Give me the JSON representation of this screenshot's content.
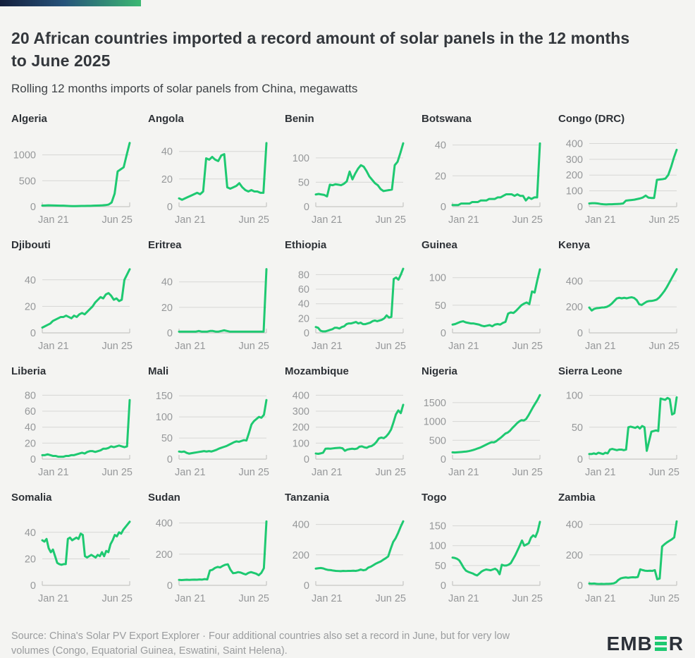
{
  "header": {
    "title": "20 African countries imported a record amount of solar panels in the 12 months to June 2025",
    "subtitle": "Rolling 12 months imports of solar panels from China, megawatts"
  },
  "footer": {
    "source": "Source: China's Solar PV Export Explorer · Four additional countries also set a record in June, but for very low volumes (Congo, Equatorial Guinea, Eswatini, Saint Helena).",
    "logo": {
      "prefix": "EMB",
      "suffix": "R"
    }
  },
  "colors": {
    "line_green": "#1ec971",
    "gridline": "#d7d7d5",
    "axis_text": "#96989a",
    "title_text": "#33373c",
    "gradient_start": "#141f3c",
    "gradient_end": "#3cb873"
  },
  "chart_data": {
    "type": "line",
    "unit": "megawatts",
    "x_start_label": "Jan 21",
    "x_end_label": "Jun 25",
    "x_range": [
      "Jan 2021",
      "Jun 2025"
    ],
    "grid": true,
    "charts": [
      {
        "title": "Algeria",
        "yticks": [
          0,
          500,
          1000
        ],
        "ymax": 1280,
        "values": [
          20,
          22,
          25,
          24,
          22,
          20,
          19,
          18,
          15,
          12,
          10,
          10,
          12,
          13,
          14,
          15,
          16,
          18,
          20,
          22,
          25,
          30,
          40,
          80,
          250,
          680,
          720,
          760,
          1000,
          1230
        ]
      },
      {
        "title": "Angola",
        "yticks": [
          0,
          20,
          40
        ],
        "ymax": 48,
        "values": [
          6,
          5,
          6,
          7,
          8,
          9,
          10,
          9,
          11,
          35,
          34,
          36,
          34,
          33,
          37,
          38,
          14,
          13,
          14,
          15,
          17,
          14,
          12,
          11,
          12,
          11,
          11,
          10,
          10,
          46
        ]
      },
      {
        "title": "Benin",
        "yticks": [
          0,
          50,
          100
        ],
        "ymax": 136,
        "values": [
          25,
          26,
          25,
          24,
          21,
          45,
          44,
          46,
          45,
          44,
          47,
          52,
          72,
          56,
          68,
          78,
          85,
          82,
          73,
          62,
          55,
          48,
          44,
          36,
          32,
          33,
          34,
          35,
          85,
          92,
          110,
          130
        ]
      },
      {
        "title": "Botswana",
        "yticks": [
          0,
          20,
          40
        ],
        "ymax": 43,
        "values": [
          1,
          1,
          1,
          2,
          2,
          2,
          2,
          3,
          3,
          3,
          4,
          4,
          4,
          5,
          5,
          5,
          6,
          6,
          7,
          8,
          8,
          8,
          7,
          8,
          7,
          7,
          4,
          6,
          5,
          6,
          6,
          41
        ]
      },
      {
        "title": "Congo (DRC)",
        "yticks": [
          0,
          100,
          200,
          300,
          400
        ],
        "ymax": 420,
        "values": [
          20,
          22,
          22,
          20,
          17,
          15,
          14,
          15,
          15,
          16,
          17,
          18,
          20,
          38,
          40,
          42,
          44,
          48,
          52,
          58,
          70,
          57,
          55,
          55,
          170,
          172,
          174,
          178,
          200,
          250,
          310,
          360
        ]
      },
      {
        "title": "Djibouti",
        "yticks": [
          0,
          20,
          40
        ],
        "ymax": 50,
        "values": [
          4,
          5,
          6,
          7,
          9,
          10,
          11,
          12,
          12,
          13,
          12,
          11,
          13,
          12,
          14,
          15,
          14,
          16,
          18,
          20,
          23,
          25,
          27,
          26,
          29,
          30,
          28,
          25,
          26,
          24,
          25,
          40,
          44,
          48
        ]
      },
      {
        "title": "Eritrea",
        "yticks": [
          0,
          20,
          40
        ],
        "ymax": 52,
        "values": [
          1,
          1,
          1,
          1,
          1,
          1,
          1,
          1.5,
          1,
          1,
          1,
          1.5,
          1.5,
          1,
          1,
          1.5,
          2,
          1.5,
          1,
          1,
          1,
          1,
          1,
          1,
          1,
          1,
          1,
          1,
          1,
          1,
          1,
          50
        ]
      },
      {
        "title": "Ethiopia",
        "yticks": [
          0,
          20,
          40,
          60,
          80
        ],
        "ymax": 91,
        "values": [
          8,
          7,
          3,
          2,
          2,
          3,
          4,
          5,
          7,
          7,
          6,
          8,
          9,
          12,
          13,
          13,
          14,
          15,
          13,
          14,
          12,
          12,
          13,
          14,
          16,
          17,
          16,
          17,
          18,
          20,
          24,
          21,
          22,
          74,
          76,
          73,
          80,
          88
        ]
      },
      {
        "title": "Guinea",
        "yticks": [
          0,
          50,
          100
        ],
        "ymax": 120,
        "values": [
          15,
          16,
          18,
          20,
          21,
          19,
          18,
          17,
          17,
          16,
          15,
          13,
          12,
          13,
          14,
          12,
          15,
          16,
          15,
          18,
          20,
          35,
          37,
          36,
          40,
          45,
          50,
          53,
          55,
          52,
          75,
          73,
          95,
          115
        ]
      },
      {
        "title": "Kenya",
        "yticks": [
          0,
          200,
          400
        ],
        "ymax": 510,
        "values": [
          195,
          172,
          185,
          190,
          192,
          195,
          196,
          200,
          210,
          225,
          245,
          265,
          270,
          266,
          270,
          266,
          271,
          274,
          268,
          252,
          220,
          215,
          228,
          240,
          245,
          246,
          250,
          256,
          272,
          295,
          320,
          350,
          385,
          420,
          455,
          490
        ]
      },
      {
        "title": "Liberia",
        "yticks": [
          0,
          20,
          40,
          60,
          80
        ],
        "ymax": 83,
        "values": [
          5,
          5,
          6,
          5,
          4,
          4,
          3,
          3,
          3,
          4,
          4,
          5,
          5,
          6,
          7,
          8,
          7,
          9,
          10,
          10,
          9,
          10,
          11,
          13,
          13,
          14,
          16,
          15,
          16,
          17,
          16,
          15,
          16,
          74
        ]
      },
      {
        "title": "Mali",
        "yticks": [
          0,
          50,
          100,
          150
        ],
        "ymax": 157,
        "values": [
          18,
          17,
          18,
          15,
          13,
          14,
          15,
          16,
          17,
          18,
          19,
          18,
          19,
          18,
          20,
          22,
          25,
          27,
          29,
          31,
          34,
          37,
          40,
          42,
          41,
          43,
          45,
          44,
          62,
          82,
          90,
          95,
          100,
          98,
          105,
          140
        ]
      },
      {
        "title": "Mozambique",
        "yticks": [
          0,
          100,
          200,
          300,
          400
        ],
        "ymax": 415,
        "values": [
          35,
          33,
          36,
          40,
          65,
          66,
          65,
          67,
          69,
          70,
          71,
          68,
          52,
          60,
          63,
          65,
          63,
          66,
          78,
          80,
          74,
          71,
          79,
          82,
          92,
          108,
          130,
          135,
          131,
          142,
          160,
          185,
          230,
          280,
          305,
          288,
          340
        ]
      },
      {
        "title": "Nigeria",
        "yticks": [
          0,
          500,
          1000,
          1500
        ],
        "ymax": 1760,
        "values": [
          180,
          176,
          180,
          185,
          190,
          196,
          202,
          212,
          226,
          242,
          262,
          285,
          305,
          335,
          365,
          395,
          425,
          450,
          445,
          475,
          525,
          570,
          625,
          680,
          705,
          755,
          825,
          885,
          950,
          1000,
          1035,
          1025,
          1065,
          1160,
          1270,
          1380,
          1480,
          1580,
          1700
        ]
      },
      {
        "title": "Sierra Leone",
        "yticks": [
          0,
          50,
          100
        ],
        "ymax": 104,
        "values": [
          8,
          8,
          9,
          8,
          10,
          9,
          8,
          10,
          9,
          15,
          16,
          15,
          14,
          15,
          15,
          14,
          15,
          50,
          51,
          50,
          49,
          51,
          48,
          52,
          50,
          13,
          28,
          43,
          44,
          45,
          44,
          95,
          94,
          93,
          96,
          94,
          70,
          72,
          97
        ]
      },
      {
        "title": "Somalia",
        "yticks": [
          0,
          20,
          40
        ],
        "ymax": 50,
        "values": [
          34,
          33,
          35,
          28,
          25,
          27,
          22,
          17,
          16,
          15.5,
          16,
          16,
          35,
          36,
          34,
          35,
          36,
          35,
          39,
          38,
          22,
          21,
          22,
          23,
          22,
          21,
          23,
          22,
          25,
          22,
          26,
          25,
          31,
          34,
          38,
          37,
          40,
          39,
          42,
          44,
          46,
          48
        ]
      },
      {
        "title": "Sudan",
        "yticks": [
          0,
          200,
          400
        ],
        "ymax": 425,
        "values": [
          35,
          34,
          35,
          36,
          35,
          36,
          37,
          36,
          38,
          37,
          40,
          38,
          95,
          100,
          112,
          118,
          115,
          125,
          132,
          135,
          100,
          78,
          80,
          85,
          82,
          75,
          70,
          80,
          85,
          80,
          75,
          65,
          80,
          110,
          410
        ]
      },
      {
        "title": "Tanzania",
        "yticks": [
          0,
          200,
          400
        ],
        "ymax": 435,
        "values": [
          110,
          112,
          114,
          111,
          105,
          101,
          100,
          97,
          95,
          94,
          93,
          95,
          94,
          95,
          95,
          96,
          95,
          98,
          104,
          99,
          102,
          116,
          122,
          132,
          142,
          150,
          157,
          168,
          178,
          190,
          240,
          285,
          310,
          345,
          385,
          420
        ]
      },
      {
        "title": "Togo",
        "yticks": [
          0,
          50,
          100,
          150
        ],
        "ymax": 167,
        "values": [
          70,
          69,
          67,
          63,
          54,
          44,
          37,
          34,
          32,
          30,
          27,
          25,
          30,
          35,
          38,
          40,
          39,
          38,
          40,
          42,
          38,
          28,
          52,
          50,
          50,
          52,
          56,
          66,
          76,
          88,
          100,
          113,
          100,
          103,
          106,
          120,
          126,
          122,
          136,
          160
        ]
      },
      {
        "title": "Zambia",
        "yticks": [
          0,
          200,
          400
        ],
        "ymax": 435,
        "values": [
          12,
          11,
          12,
          10,
          9,
          10,
          9,
          10,
          10,
          11,
          13,
          20,
          36,
          46,
          50,
          52,
          50,
          52,
          53,
          52,
          55,
          105,
          100,
          96,
          95,
          96,
          95,
          100,
          40,
          45,
          255,
          270,
          282,
          292,
          302,
          315,
          420
        ]
      }
    ]
  }
}
